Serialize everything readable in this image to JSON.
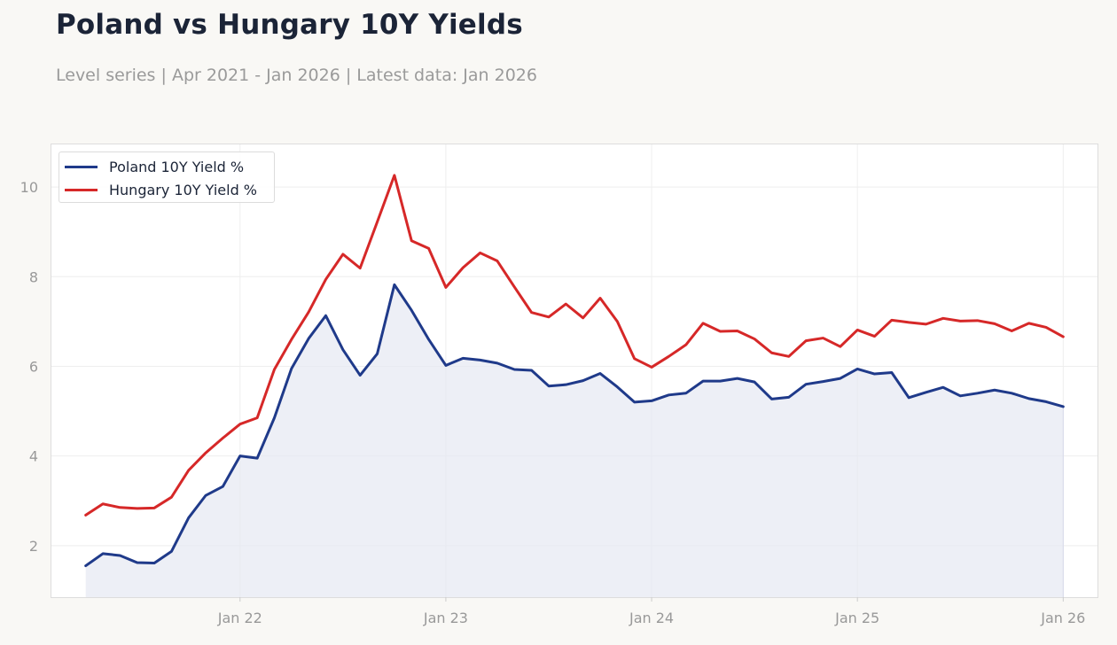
{
  "header": {
    "title": "Poland vs Hungary 10Y Yields",
    "subtitle": "Level series | Apr 2021 - Jan 2026 | Latest data: Jan 2026"
  },
  "colors": {
    "poland": "#1f3a8a",
    "hungary": "#d62828",
    "area_fill": "#e6e8f2",
    "background": "#f9f8f5"
  },
  "chart_data": {
    "type": "line",
    "title": "Poland vs Hungary 10Y Yields",
    "xlabel": "",
    "ylabel": "",
    "x_start": "2021-04",
    "x_frequency": "monthly",
    "xlim": [
      "2021-02",
      "2026-03"
    ],
    "ylim": [
      0.85,
      10.95
    ],
    "x_ticks": [
      {
        "date": "2022-01",
        "label": "Jan 22"
      },
      {
        "date": "2023-01",
        "label": "Jan 23"
      },
      {
        "date": "2024-01",
        "label": "Jan 24"
      },
      {
        "date": "2025-01",
        "label": "Jan 25"
      },
      {
        "date": "2026-01",
        "label": "Jan 26"
      }
    ],
    "y_ticks": [
      {
        "value": 2,
        "label": "2"
      },
      {
        "value": 4,
        "label": "4"
      },
      {
        "value": 6,
        "label": "6"
      },
      {
        "value": 8,
        "label": "8"
      },
      {
        "value": 10,
        "label": "10"
      }
    ],
    "grid": true,
    "legend_position": "top-left",
    "series": [
      {
        "name": "Poland 10Y Yield %",
        "color": "#1f3a8a",
        "area_fill": true,
        "values": [
          1.55,
          1.82,
          1.78,
          1.62,
          1.61,
          1.87,
          2.62,
          3.12,
          3.32,
          4.0,
          3.95,
          4.85,
          5.95,
          6.62,
          7.13,
          6.37,
          5.8,
          6.28,
          7.82,
          7.25,
          6.6,
          6.02,
          6.18,
          6.14,
          6.07,
          5.93,
          5.91,
          5.56,
          5.59,
          5.68,
          5.84,
          5.54,
          5.2,
          5.23,
          5.36,
          5.4,
          5.67,
          5.67,
          5.73,
          5.65,
          5.27,
          5.31,
          5.6,
          5.66,
          5.73,
          5.94,
          5.83,
          5.86,
          5.3,
          5.42,
          5.53,
          5.34,
          5.4,
          5.47,
          5.4,
          5.28,
          5.21,
          5.1
        ]
      },
      {
        "name": "Hungary 10Y Yield %",
        "color": "#d62828",
        "area_fill": false,
        "values": [
          2.68,
          2.93,
          2.85,
          2.83,
          2.84,
          3.08,
          3.68,
          4.07,
          4.4,
          4.71,
          4.85,
          5.93,
          6.6,
          7.21,
          7.94,
          8.5,
          8.19,
          9.22,
          10.26,
          8.8,
          8.63,
          7.76,
          8.2,
          8.53,
          8.35,
          7.77,
          7.2,
          7.1,
          7.39,
          7.08,
          7.52,
          7.0,
          6.17,
          5.98,
          6.22,
          6.48,
          6.96,
          6.78,
          6.79,
          6.61,
          6.3,
          6.22,
          6.57,
          6.63,
          6.44,
          6.81,
          6.67,
          7.03,
          6.98,
          6.94,
          7.07,
          7.01,
          7.02,
          6.95,
          6.79,
          6.96,
          6.87,
          6.66
        ]
      }
    ]
  }
}
